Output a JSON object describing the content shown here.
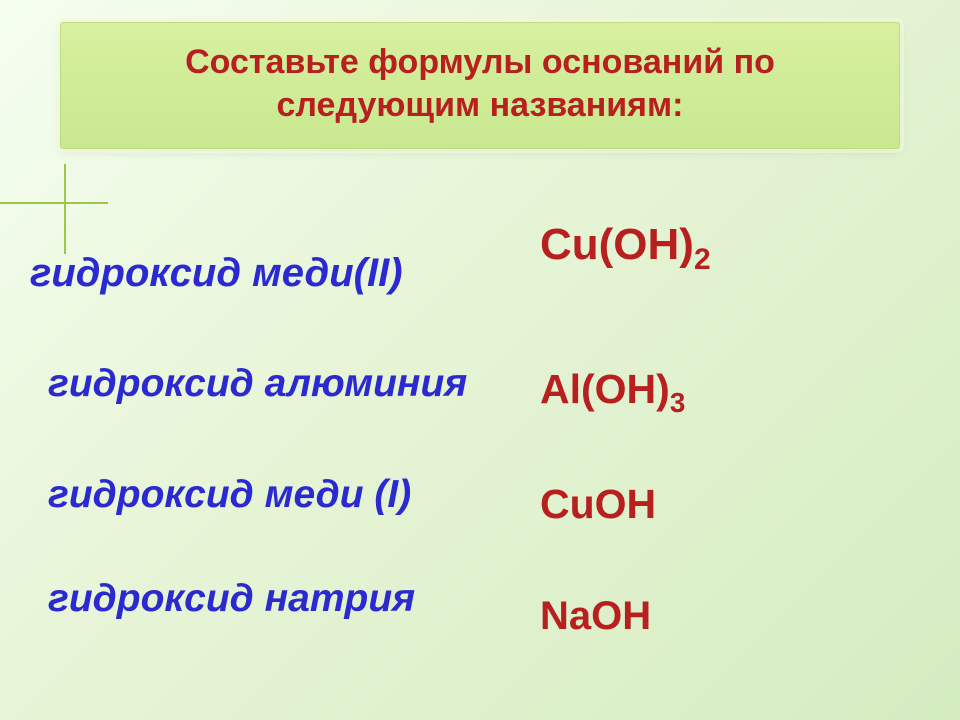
{
  "title": {
    "text": "Составьте формулы оснований по следующим названиям:",
    "color": "#b82020",
    "fontsize": 34
  },
  "content": {
    "name_color": "#2a2ad0",
    "formula_color": "#b82020",
    "rows": [
      {
        "name": "гидроксид меди(II)",
        "formula_html": "Cu(OH)<sub>2</sub>"
      },
      {
        "name": "гидроксид алюминия",
        "formula_html": "Al(OH)<sub>3</sub>"
      },
      {
        "name": "гидроксид меди (I)",
        "formula_html": "CuOH"
      },
      {
        "name": "гидроксид натрия",
        "formula_html": "NaOH"
      }
    ]
  },
  "styling": {
    "background_gradient": [
      "#f5fef0",
      "#e8f5d8",
      "#d4ecc0"
    ],
    "title_box_bg": [
      "#d8f0a0",
      "#c8e890"
    ],
    "accent_line_color": "#9cc84a",
    "name_fontsize": 39,
    "formula_fontsize": 41,
    "name_font_style": "italic bold",
    "formula_font_style": "bold"
  }
}
